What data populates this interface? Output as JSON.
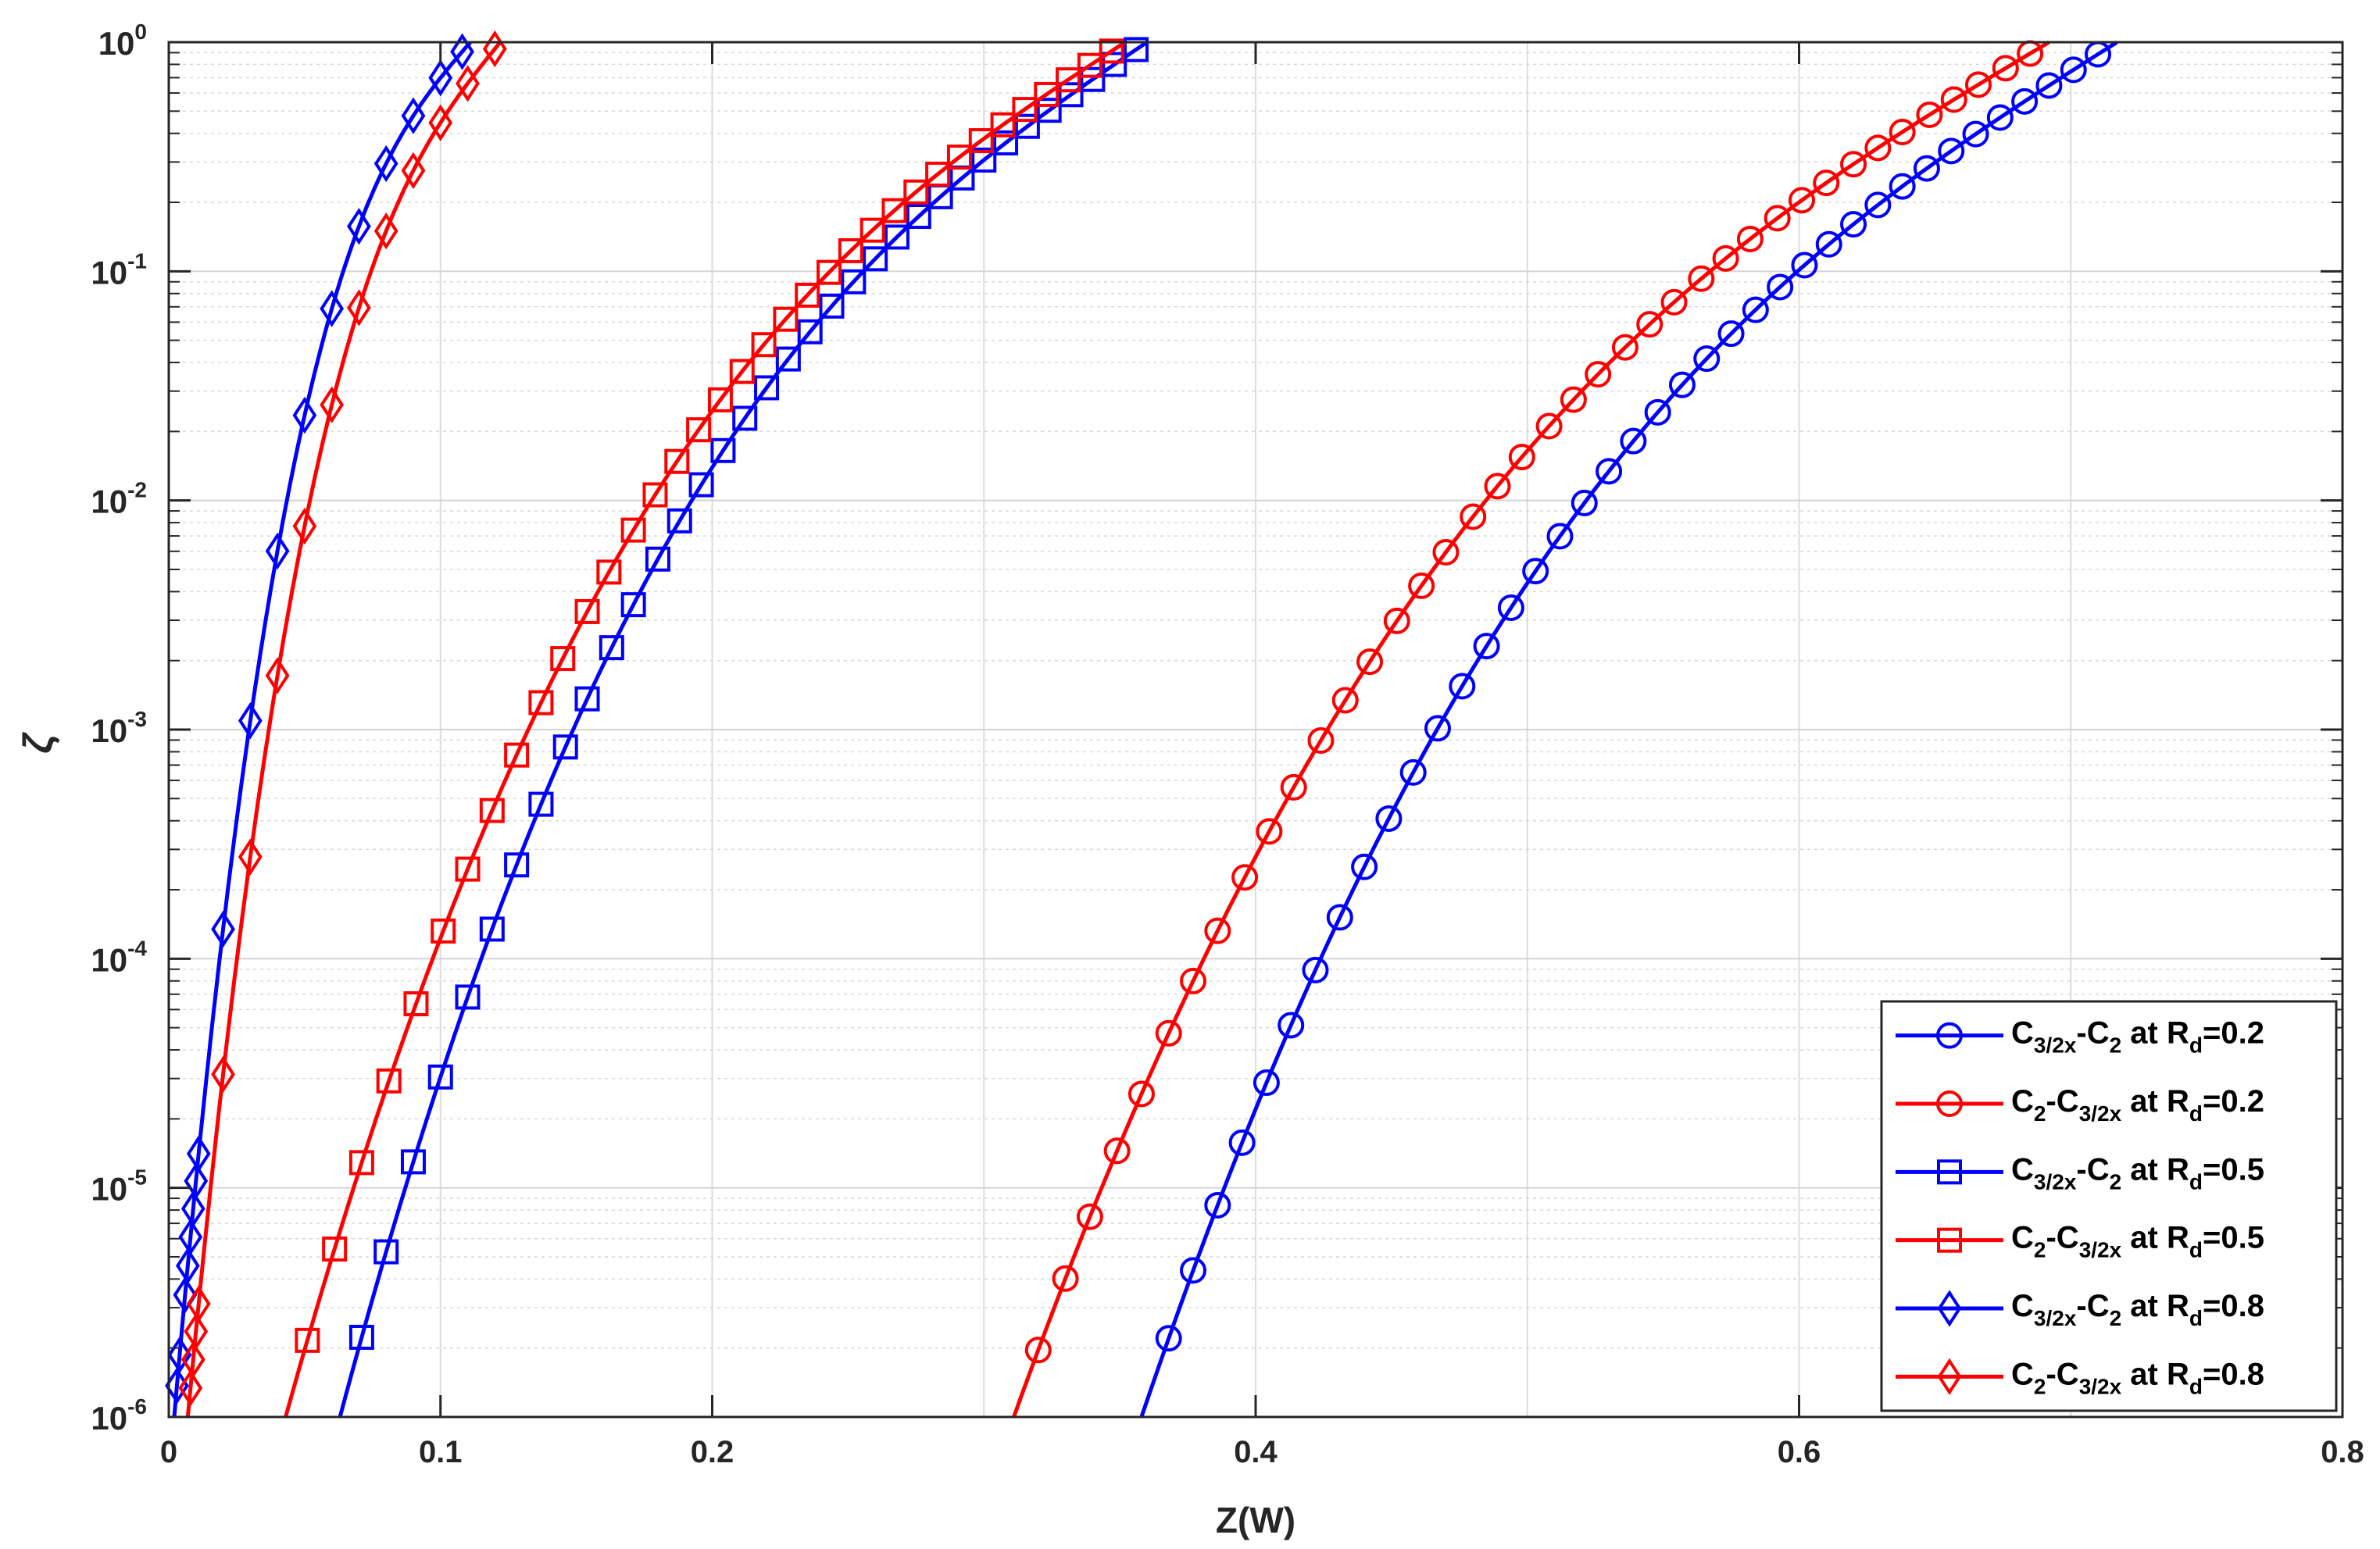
{
  "chart_data": {
    "type": "line",
    "xlabel": "Z(W)",
    "ylabel": "ζ",
    "xlim": [
      0,
      0.8
    ],
    "ylim_log10": [
      -6,
      0
    ],
    "yscale": "log",
    "grid": true,
    "minor_grid": true,
    "legend_position": "bottom-right",
    "x_ticks": [
      {
        "value": 0,
        "label": "0"
      },
      {
        "value": 0.1,
        "label": "0.1"
      },
      {
        "value": 0.2,
        "label": "0.2"
      },
      {
        "value": 0.4,
        "label": "0.4"
      },
      {
        "value": 0.6,
        "label": "0.6"
      },
      {
        "value": 0.8,
        "label": "0.8"
      }
    ],
    "x_grid_values": [
      0.1,
      0.2,
      0.3,
      0.4,
      0.5,
      0.6,
      0.7
    ],
    "y_ticks": [
      {
        "exp": -6,
        "base": "10",
        "sup": "-6"
      },
      {
        "exp": -5,
        "base": "10",
        "sup": "-5"
      },
      {
        "exp": -4,
        "base": "10",
        "sup": "-4"
      },
      {
        "exp": -3,
        "base": "10",
        "sup": "-3"
      },
      {
        "exp": -2,
        "base": "10",
        "sup": "-2"
      },
      {
        "exp": -1,
        "base": "10",
        "sup": "-1"
      },
      {
        "exp": 0,
        "base": "10",
        "sup": "0"
      }
    ],
    "series": [
      {
        "legend": {
          "a": "C",
          "a_sub": "3/2x",
          "b": "-C",
          "b_sub": "2",
          "c": " at R",
          "c_sub": "d",
          "d": "=0.2"
        },
        "color": "#0000ff",
        "marker": "circle",
        "x0": 0.358,
        "x1": 0.717,
        "logy0": -6.0,
        "logy1": 0.0,
        "curv": 0.55,
        "x_markers": [
          0.368,
          0.377,
          0.386,
          0.395,
          0.404,
          0.413,
          0.422,
          0.431,
          0.44,
          0.449,
          0.458,
          0.467,
          0.476,
          0.485,
          0.494,
          0.503,
          0.512,
          0.521,
          0.53,
          0.539,
          0.548,
          0.557,
          0.566,
          0.575,
          0.584,
          0.593,
          0.602,
          0.611,
          0.62,
          0.629,
          0.638,
          0.647,
          0.656,
          0.665,
          0.674,
          0.683,
          0.692,
          0.701,
          0.71
        ]
      },
      {
        "legend": {
          "a": "C",
          "a_sub": "2",
          "b": "-C",
          "b_sub": "3/2x",
          "c": " at R",
          "c_sub": "d",
          "d": "=0.2"
        },
        "color": "#ff0000",
        "marker": "circle",
        "x0": 0.311,
        "x1": 0.692,
        "logy0": -6.0,
        "logy1": 0.0,
        "curv": 0.55,
        "x_markers": [
          0.32,
          0.33,
          0.339,
          0.349,
          0.358,
          0.368,
          0.377,
          0.386,
          0.396,
          0.405,
          0.414,
          0.424,
          0.433,
          0.442,
          0.452,
          0.461,
          0.47,
          0.48,
          0.489,
          0.498,
          0.508,
          0.517,
          0.526,
          0.536,
          0.545,
          0.554,
          0.564,
          0.573,
          0.582,
          0.592,
          0.601,
          0.61,
          0.62,
          0.629,
          0.638,
          0.648,
          0.657,
          0.666,
          0.676,
          0.685
        ]
      },
      {
        "legend": {
          "a": "C",
          "a_sub": "3/2x",
          "b": "-C",
          "b_sub": "2",
          "c": " at R",
          "c_sub": "d",
          "d": "=0.5"
        },
        "color": "#0000ff",
        "marker": "square",
        "x0": 0.063,
        "x1": 0.36,
        "logy0": -6.0,
        "logy1": 0.0,
        "curv": 0.6,
        "x_markers": [
          0.071,
          0.08,
          0.09,
          0.1,
          0.11,
          0.119,
          0.128,
          0.137,
          0.146,
          0.154,
          0.163,
          0.171,
          0.18,
          0.188,
          0.196,
          0.204,
          0.212,
          0.22,
          0.228,
          0.236,
          0.244,
          0.252,
          0.26,
          0.268,
          0.276,
          0.284,
          0.292,
          0.3,
          0.308,
          0.316,
          0.324,
          0.332,
          0.34,
          0.348,
          0.356
        ]
      },
      {
        "legend": {
          "a": "C",
          "a_sub": "2",
          "b": "-C",
          "b_sub": "3/2x",
          "c": " at R",
          "c_sub": "d",
          "d": "=0.5"
        },
        "color": "#ff0000",
        "marker": "square",
        "x0": 0.043,
        "x1": 0.352,
        "logy0": -6.0,
        "logy1": 0.0,
        "curv": 0.6,
        "x_markers": [
          0.051,
          0.061,
          0.071,
          0.081,
          0.091,
          0.101,
          0.11,
          0.119,
          0.128,
          0.137,
          0.145,
          0.154,
          0.162,
          0.171,
          0.179,
          0.187,
          0.195,
          0.203,
          0.211,
          0.219,
          0.227,
          0.235,
          0.243,
          0.251,
          0.259,
          0.267,
          0.275,
          0.283,
          0.291,
          0.299,
          0.307,
          0.315,
          0.323,
          0.331,
          0.339,
          0.347
        ]
      },
      {
        "legend": {
          "a": "C",
          "a_sub": "3/2x",
          "b": "-C",
          "b_sub": "2",
          "c": " at R",
          "c_sub": "d",
          "d": "=0.8"
        },
        "color": "#0000ff",
        "marker": "diamond",
        "x0": 0.002,
        "x1": 0.111,
        "logy0": -6.0,
        "logy1": 0.0,
        "curv": 0.75,
        "x_markers": [
          0.003,
          0.004,
          0.006,
          0.007,
          0.008,
          0.009,
          0.01,
          0.011,
          0.02,
          0.03,
          0.04,
          0.05,
          0.06,
          0.07,
          0.08,
          0.09,
          0.1,
          0.108
        ]
      },
      {
        "legend": {
          "a": "C",
          "a_sub": "2",
          "b": "-C",
          "b_sub": "3/2x",
          "c": " at R",
          "c_sub": "d",
          "d": "=0.8"
        },
        "color": "#ff0000",
        "marker": "diamond",
        "x0": 0.007,
        "x1": 0.122,
        "logy0": -6.0,
        "logy1": 0.0,
        "curv": 0.72,
        "x_markers": [
          0.008,
          0.009,
          0.01,
          0.011,
          0.02,
          0.03,
          0.04,
          0.05,
          0.06,
          0.07,
          0.08,
          0.09,
          0.1,
          0.11,
          0.12
        ]
      }
    ]
  }
}
